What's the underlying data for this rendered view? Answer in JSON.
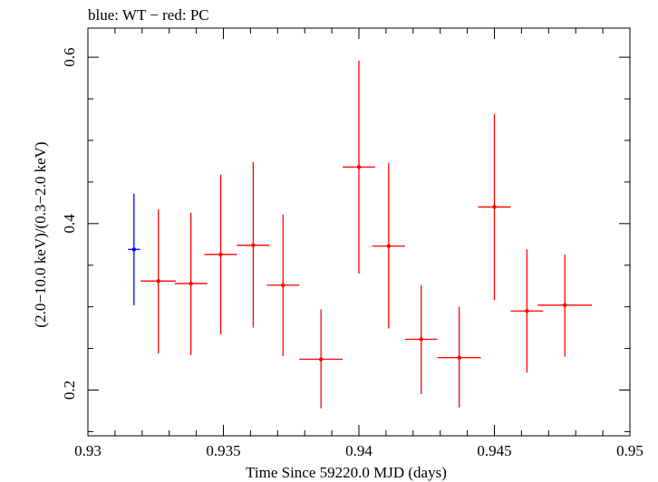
{
  "chart_data": {
    "type": "scatter",
    "title": "blue: WT − red: PC",
    "xlabel": "Time Since 59220.0 MJD (days)",
    "ylabel": "(2.0−10.0 keV)/(0.3−2.0 keV)",
    "xlim": [
      0.93,
      0.95
    ],
    "ylim": [
      0.145,
      0.635
    ],
    "x_ticks": [
      {
        "value": 0.93,
        "label": "0.93"
      },
      {
        "value": 0.935,
        "label": "0.935"
      },
      {
        "value": 0.94,
        "label": "0.94"
      },
      {
        "value": 0.945,
        "label": "0.945"
      },
      {
        "value": 0.95,
        "label": "0.95"
      }
    ],
    "y_ticks": [
      {
        "value": 0.2,
        "label": "0.2"
      },
      {
        "value": 0.4,
        "label": "0.4"
      },
      {
        "value": 0.6,
        "label": "0.6"
      }
    ],
    "grid": false,
    "series": [
      {
        "color": "#0000ff",
        "points": [
          {
            "x": 0.9317,
            "y": 0.369,
            "xerr": 0.00022,
            "ylow": 0.302,
            "yhigh": 0.436
          }
        ]
      },
      {
        "color": "#ff0000",
        "points": [
          {
            "x": 0.9326,
            "y": 0.331,
            "xerr": 0.00065,
            "ylow": 0.244,
            "yhigh": 0.417
          },
          {
            "x": 0.9338,
            "y": 0.328,
            "xerr": 0.0006,
            "ylow": 0.242,
            "yhigh": 0.413
          },
          {
            "x": 0.9349,
            "y": 0.363,
            "xerr": 0.0006,
            "ylow": 0.267,
            "yhigh": 0.459
          },
          {
            "x": 0.9361,
            "y": 0.374,
            "xerr": 0.0006,
            "ylow": 0.275,
            "yhigh": 0.474
          },
          {
            "x": 0.9372,
            "y": 0.326,
            "xerr": 0.0006,
            "ylow": 0.241,
            "yhigh": 0.411
          },
          {
            "x": 0.9386,
            "y": 0.237,
            "xerr": 0.0008,
            "ylow": 0.178,
            "yhigh": 0.297
          },
          {
            "x": 0.94,
            "y": 0.468,
            "xerr": 0.0006,
            "ylow": 0.34,
            "yhigh": 0.596
          },
          {
            "x": 0.9411,
            "y": 0.373,
            "xerr": 0.0006,
            "ylow": 0.274,
            "yhigh": 0.473
          },
          {
            "x": 0.9423,
            "y": 0.261,
            "xerr": 0.0006,
            "ylow": 0.195,
            "yhigh": 0.326
          },
          {
            "x": 0.9437,
            "y": 0.239,
            "xerr": 0.0008,
            "ylow": 0.179,
            "yhigh": 0.3
          },
          {
            "x": 0.945,
            "y": 0.42,
            "xerr": 0.0006,
            "ylow": 0.308,
            "yhigh": 0.532
          },
          {
            "x": 0.9462,
            "y": 0.295,
            "xerr": 0.0006,
            "ylow": 0.221,
            "yhigh": 0.369
          },
          {
            "x": 0.9476,
            "y": 0.302,
            "xerr": 0.001,
            "ylow": 0.24,
            "yhigh": 0.363
          }
        ]
      }
    ]
  }
}
